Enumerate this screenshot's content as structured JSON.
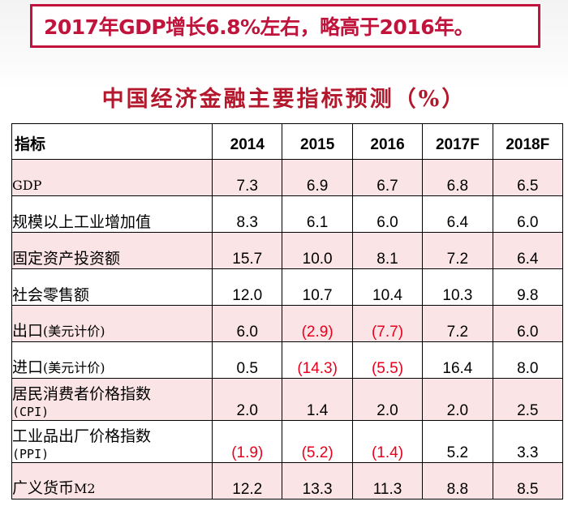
{
  "headline": "2017年GDP增长6.8%左右，略高于2016年。",
  "table_title": "中国经济金融主要指标预测（%）",
  "table": {
    "label_header": "指标",
    "years": [
      "2014",
      "2015",
      "2016",
      "2017F",
      "2018F"
    ],
    "rows": [
      {
        "label": "GDP",
        "label_style": "latin",
        "values": [
          "7.3",
          "6.9",
          "6.7",
          "6.8",
          "6.5"
        ],
        "negative": [
          false,
          false,
          false,
          false,
          false
        ]
      },
      {
        "label": "规模以上工业增加值",
        "values": [
          "8.3",
          "6.1",
          "6.0",
          "6.4",
          "6.0"
        ],
        "negative": [
          false,
          false,
          false,
          false,
          false
        ]
      },
      {
        "label": "固定资产投资额",
        "values": [
          "15.7",
          "10.0",
          "8.1",
          "7.2",
          "6.4"
        ],
        "negative": [
          false,
          false,
          false,
          false,
          false
        ]
      },
      {
        "label": "社会零售额",
        "values": [
          "12.0",
          "10.7",
          "10.4",
          "10.3",
          "9.8"
        ],
        "negative": [
          false,
          false,
          false,
          false,
          false
        ]
      },
      {
        "label": "出口",
        "label_paren": "(美元计价)",
        "values": [
          "6.0",
          "(2.9)",
          "(7.7)",
          "7.2",
          "6.0"
        ],
        "negative": [
          false,
          true,
          true,
          false,
          false
        ]
      },
      {
        "label": "进口",
        "label_paren": "(美元计价)",
        "values": [
          "0.5",
          "(14.3)",
          "(5.5)",
          "16.4",
          "8.0"
        ],
        "negative": [
          false,
          true,
          true,
          false,
          false
        ]
      },
      {
        "label": "居民消费者价格指数",
        "label_sub": "(CPI)",
        "values": [
          "2.0",
          "1.4",
          "2.0",
          "2.0",
          "2.5"
        ],
        "negative": [
          false,
          false,
          false,
          false,
          false
        ]
      },
      {
        "label": "工业品出厂价格指数",
        "label_sub": "(PPI)",
        "values": [
          "(1.9)",
          "(5.2)",
          "(1.4)",
          "5.2",
          "3.3"
        ],
        "negative": [
          true,
          true,
          true,
          false,
          false
        ]
      },
      {
        "label": "广义货币",
        "label_latin": "M2",
        "values": [
          "12.2",
          "13.3",
          "11.3",
          "8.8",
          "8.5"
        ],
        "negative": [
          false,
          false,
          false,
          false,
          false
        ]
      }
    ]
  },
  "colors": {
    "accent_red": "#c0143c",
    "negative_red": "#e8001c",
    "row_pink": "#fbe4e6"
  }
}
